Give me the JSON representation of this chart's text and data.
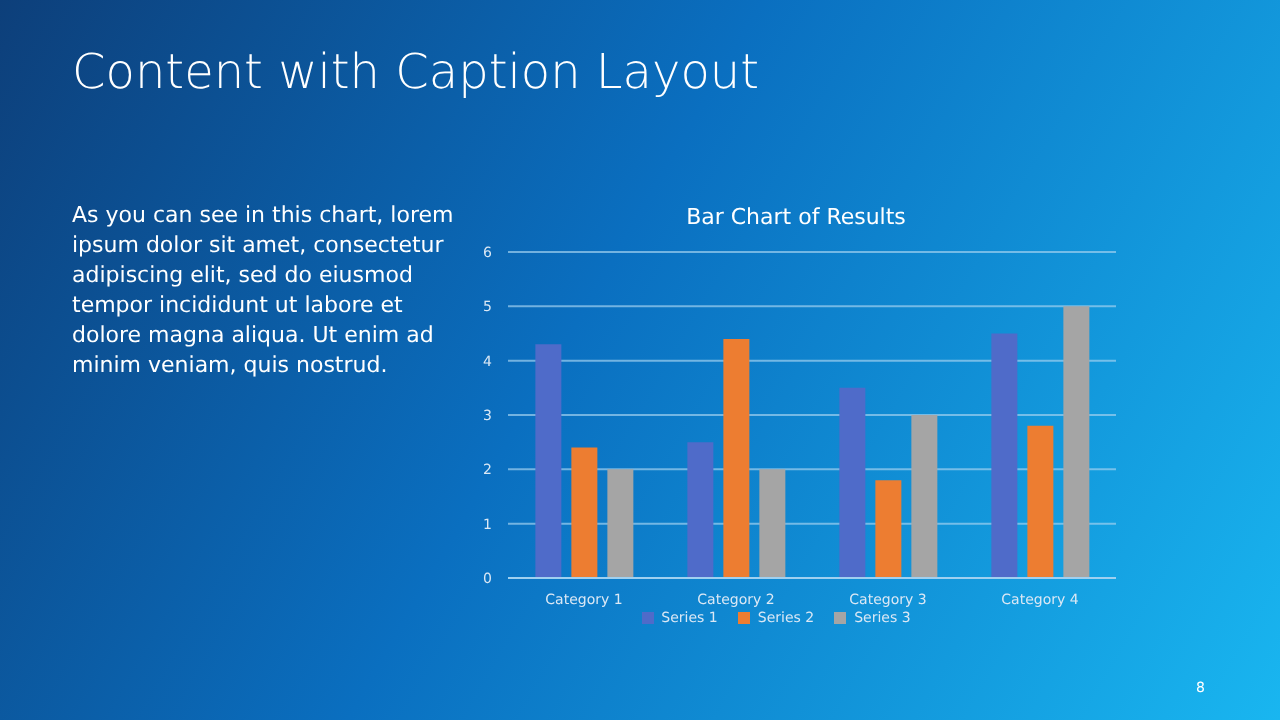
{
  "chart_data": {
    "type": "bar",
    "title": "Bar Chart of Results",
    "categories": [
      "Category 1",
      "Category 2",
      "Category 3",
      "Category 4"
    ],
    "series": [
      {
        "name": "Series 1",
        "color": "#4f6bc9",
        "values": [
          4.3,
          2.5,
          3.5,
          4.5
        ]
      },
      {
        "name": "Series 2",
        "color": "#ed7d31",
        "values": [
          2.4,
          4.4,
          1.8,
          2.8
        ]
      },
      {
        "name": "Series 3",
        "color": "#a5a5a5",
        "values": [
          2,
          2,
          3,
          5
        ]
      }
    ],
    "ylim": [
      0,
      6
    ],
    "yticks": [
      0,
      1,
      2,
      3,
      4,
      5,
      6
    ],
    "grid": "y",
    "legend": "bottom",
    "annotations": [
      "Content with Caption Layout",
      "As you can see in this chart, lorem ipsum dolor sit amet, consectetur adipiscing elit, sed do eiusmod tempor incididunt ut labore et dolore magna aliqua. Ut enim ad minim veniam, quis nostrud.",
      "8"
    ]
  }
}
